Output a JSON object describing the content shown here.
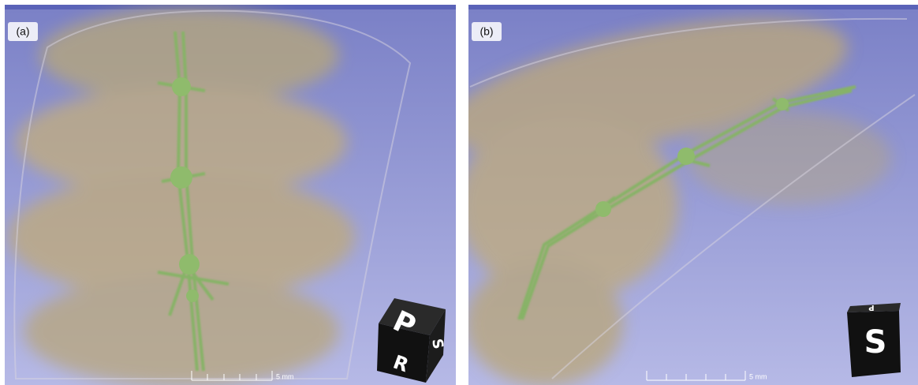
{
  "panels": [
    {
      "label": "(a)",
      "scale_bar": "5 mm",
      "cube_labels": [
        "P",
        "R",
        "S"
      ]
    },
    {
      "label": "(b)",
      "scale_bar": "5 mm",
      "cube_labels": [
        "S",
        "P"
      ]
    }
  ]
}
